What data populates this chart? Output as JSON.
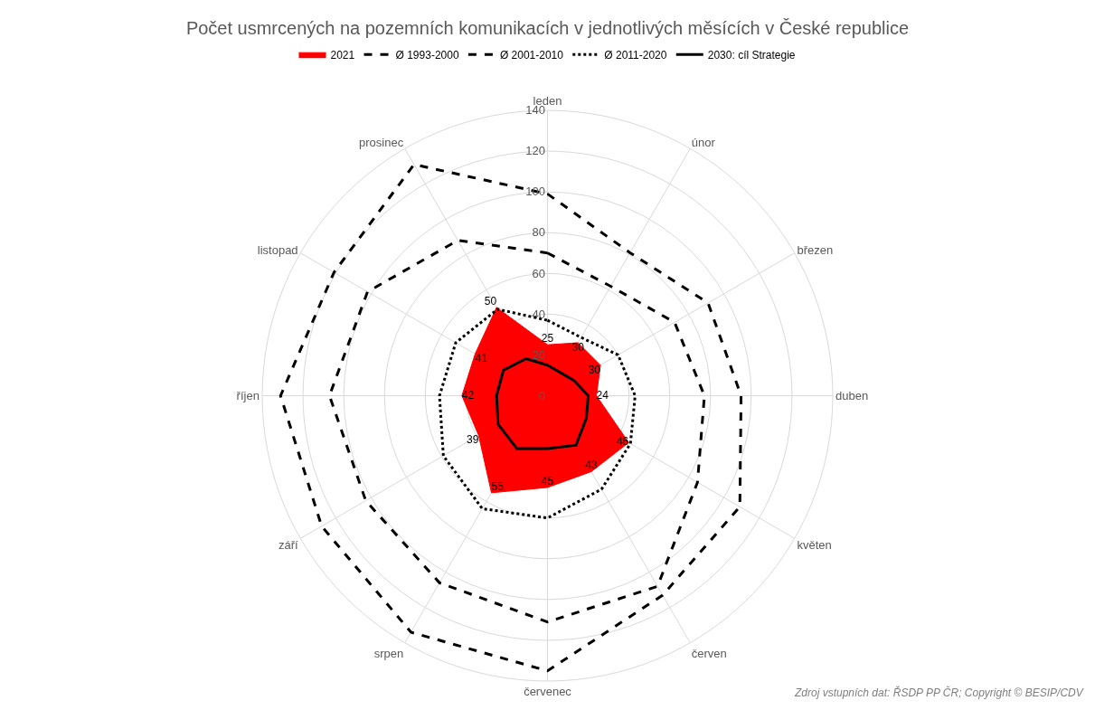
{
  "chart_data": {
    "type": "radar",
    "title": "Počet usmrcených na pozemních komunikacích v jednotlivých měsících v České republice",
    "categories": [
      "leden",
      "únor",
      "březen",
      "duben",
      "květen",
      "červen",
      "červenec",
      "srpen",
      "září",
      "říjen",
      "listopad",
      "prosinec"
    ],
    "series": [
      {
        "name": "2021",
        "type": "area",
        "color": "#ff0000",
        "values": [
          25,
          30,
          30,
          24,
          46,
          43,
          45,
          55,
          39,
          42,
          41,
          50
        ],
        "value_labels": [
          "25",
          "30",
          "30",
          "24",
          "46",
          "43",
          "45",
          "55",
          "39",
          "42",
          "41",
          "50"
        ]
      },
      {
        "name": "Ø 1993-2000",
        "color": "#000000",
        "line_style": "dashed",
        "values": [
          99,
          81,
          91,
          95,
          109,
          113,
          135,
          134,
          128,
          131,
          121,
          131
        ]
      },
      {
        "name": "Ø 2001-2010",
        "color": "#000000",
        "line_style": "dashed",
        "values": [
          70,
          62,
          72,
          77,
          85,
          108,
          111,
          106,
          103,
          107,
          102,
          88
        ]
      },
      {
        "name": "Ø 2011-2020",
        "color": "#000000",
        "line_style": "dotted",
        "values": [
          37,
          33,
          40,
          43,
          47,
          53,
          60,
          64,
          59,
          53,
          52,
          49
        ]
      },
      {
        "name": "2030: cíl Strategie",
        "color": "#000000",
        "line_style": "solid",
        "values": [
          15,
          13,
          15,
          20,
          22,
          28,
          26,
          30,
          28,
          25,
          25,
          21
        ]
      }
    ],
    "ylim": [
      0,
      140
    ],
    "yticks": [
      0,
      20,
      40,
      60,
      80,
      100,
      120,
      140
    ],
    "grid": true,
    "legend": "top",
    "marker": "none",
    "annotations": [
      "Zdroj vstupních dat: ŘSDP PP ČR; Copyright © BESIP/CDV"
    ]
  }
}
